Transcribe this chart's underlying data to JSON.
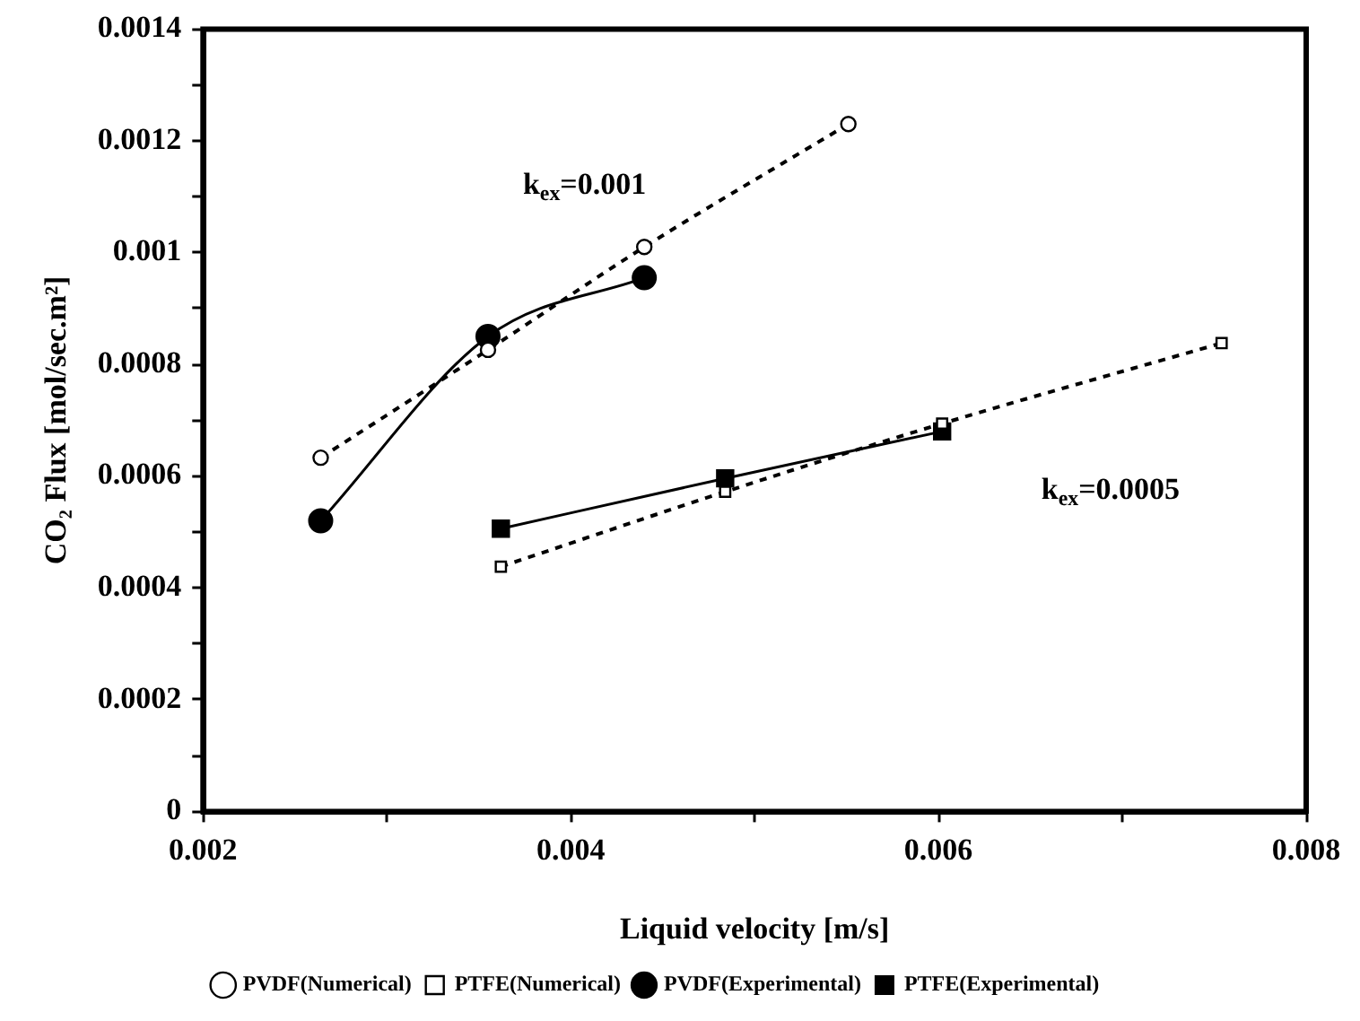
{
  "chart_data": {
    "type": "line",
    "xlabel": "Liquid velocity [m/s]",
    "ylabel": "CO₂ Flux [mol/sec.m²]",
    "xlim": [
      0.002,
      0.008
    ],
    "xticks": [
      0.002,
      {
        "value": 0.003,
        "label": null
      },
      0.004,
      {
        "value": 0.005,
        "label": null
      },
      0.006,
      {
        "value": 0.007,
        "label": null
      },
      0.008
    ],
    "ylim": [
      0,
      0.0014
    ],
    "yticks": [
      0,
      {
        "value": 0.0001,
        "label": null
      },
      0.0002,
      {
        "value": 0.0003,
        "label": null
      },
      0.0004,
      {
        "value": 0.0005,
        "label": null
      },
      0.0006,
      {
        "value": 0.0007,
        "label": null
      },
      0.0008,
      {
        "value": 0.0009,
        "label": null
      },
      0.001,
      {
        "value": 0.0011,
        "label": null
      },
      0.0012,
      {
        "value": 0.0013,
        "label": null
      },
      0.0014
    ],
    "grid": false,
    "legend": "bottom",
    "series": [
      {
        "name": "PVDF(Experimental)",
        "color": "#000000",
        "marker": "circle",
        "line_style": "solid",
        "x": [
          0.00264,
          0.00355,
          0.0044
        ],
        "values": [
          0.00052,
          0.00085,
          0.000955
        ]
      },
      {
        "name": "PTFE(Experimental)",
        "color": "#000000",
        "marker": "square",
        "line_style": "solid",
        "x": [
          0.00362,
          0.00484,
          0.00602
        ],
        "values": [
          0.000506,
          0.000596,
          0.00068
        ]
      },
      {
        "name": "PVDF(Numerical)",
        "color": "#000000",
        "marker": "circle",
        "line_style": "dashed",
        "x": [
          0.00264,
          0.00355,
          0.0044,
          0.00551
        ],
        "values": [
          0.000633,
          0.000826,
          0.00101,
          0.00123
        ]
      },
      {
        "name": "PTFE(Numerical)",
        "color": "#000000",
        "marker": "square",
        "line_style": "dashed",
        "x": [
          0.00362,
          0.00484,
          0.00602,
          0.00754
        ],
        "values": [
          0.000438,
          0.000572,
          0.000694,
          0.000838
        ]
      }
    ],
    "annotations": [
      "k$_{ex}$=0.001",
      "k$_{ex}$=0.0005"
    ]
  }
}
